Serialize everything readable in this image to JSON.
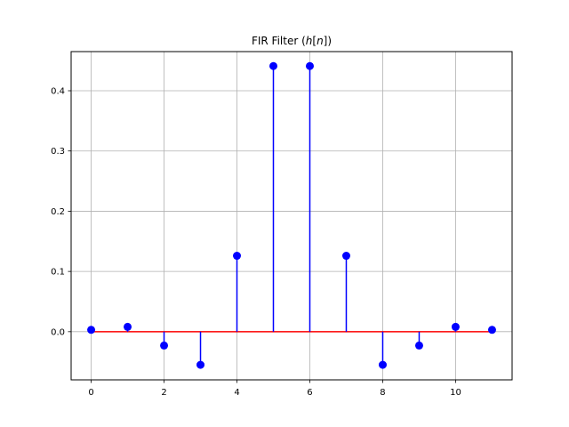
{
  "chart_data": {
    "type": "stem",
    "title": "FIR Filter (h[n])",
    "title_parts": {
      "prefix": "FIR Filter (",
      "var": "h",
      "lb": "[",
      "index": "n",
      "rb": "])"
    },
    "xlabel": "",
    "ylabel": "",
    "x": [
      0,
      1,
      2,
      3,
      4,
      5,
      6,
      7,
      8,
      9,
      10,
      11
    ],
    "values": [
      0.003,
      0.008,
      -0.023,
      -0.055,
      0.126,
      0.441,
      0.441,
      0.126,
      -0.055,
      -0.023,
      0.008,
      0.003
    ],
    "xlim": [
      -0.55,
      11.55
    ],
    "ylim": [
      -0.08,
      0.465
    ],
    "xticks": [
      0,
      2,
      4,
      6,
      8,
      10
    ],
    "xtick_labels": [
      "0",
      "2",
      "4",
      "6",
      "8",
      "10"
    ],
    "yticks": [
      0.0,
      0.1,
      0.2,
      0.3,
      0.4
    ],
    "ytick_labels": [
      "0.0",
      "0.1",
      "0.2",
      "0.3",
      "0.4"
    ],
    "grid": true,
    "colors": {
      "stem": "#0000ff",
      "marker": "#0000ff",
      "baseline": "#ff0000",
      "grid": "#b0b0b0"
    }
  }
}
